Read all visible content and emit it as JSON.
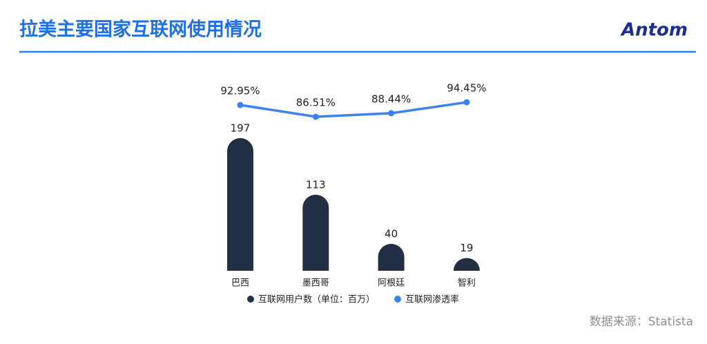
{
  "logo": "Antom",
  "chart_data": {
    "type": "bar",
    "title": "拉美主要国家互联网使用情况",
    "source": "数据来源：Statista",
    "categories": [
      "巴西",
      "墨西哥",
      "阿根廷",
      "智利"
    ],
    "series": [
      {
        "name": "互联网用户数（单位：百万）",
        "type": "bar",
        "color": "#222f44",
        "values": [
          197,
          113,
          40,
          19
        ]
      },
      {
        "name": "互联网渗透率",
        "type": "line",
        "axis": "y2",
        "color": "#3b82f0",
        "values": [
          92.95,
          86.51,
          88.44,
          94.45
        ],
        "value_labels": [
          "92.95%",
          "86.51%",
          "88.44%",
          "94.45%"
        ]
      }
    ]
  }
}
